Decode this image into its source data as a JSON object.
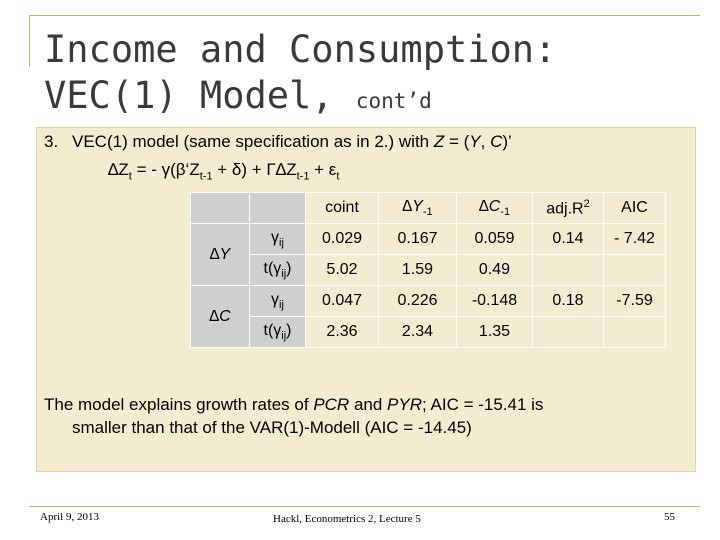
{
  "header": {
    "title_line1": "Income and Consumption:",
    "title_line2": "VEC(1) Model, ",
    "title_suffix": "cont’d"
  },
  "item": {
    "number": "3.",
    "text": [
      "VEC(1) model (same specification as in 2.) with ",
      "Z",
      " = (",
      "Y",
      ", ",
      "C",
      ")’"
    ],
    "formula": [
      "∆Z",
      "t",
      " = - γ(β‘Z",
      "t-1",
      " + δ) + Γ∆Z",
      "t-1",
      " + ε",
      "t"
    ]
  },
  "table": {
    "header": [
      "coint",
      [
        "∆Y",
        "-1"
      ],
      [
        "∆C",
        "-1"
      ],
      [
        "adj.R",
        "2"
      ],
      "AIC"
    ],
    "groups": [
      {
        "label": "∆Y",
        "rows": [
          {
            "stat": [
              "γ",
              "ij"
            ],
            "values": [
              "0.029",
              "0.167",
              "0.059",
              "0.14",
              "- 7.42"
            ]
          },
          {
            "stat": [
              "t(γ",
              "ij",
              ")"
            ],
            "values": [
              "5.02",
              "1.59",
              "0.49"
            ]
          }
        ]
      },
      {
        "label": "∆C",
        "rows": [
          {
            "stat": [
              "γ",
              "ij"
            ],
            "values": [
              "0.047",
              "0.226",
              "-0.148",
              "0.18",
              "-7.59"
            ]
          },
          {
            "stat": [
              "t(γ",
              "ij",
              ")"
            ],
            "values": [
              "2.36",
              "2.34",
              "1.35"
            ]
          }
        ]
      }
    ]
  },
  "conclusion": [
    "The model explains growth rates of ",
    "PCR",
    " and ",
    "PYR",
    "; AIC = -15.41 is",
    "smaller than that of the VAR(1)-Modell (AIC = -14.45)"
  ],
  "footer": {
    "date": "April 9, 2013",
    "center": "Hackl, Econometrics 2, Lecture 5",
    "page": "55"
  }
}
